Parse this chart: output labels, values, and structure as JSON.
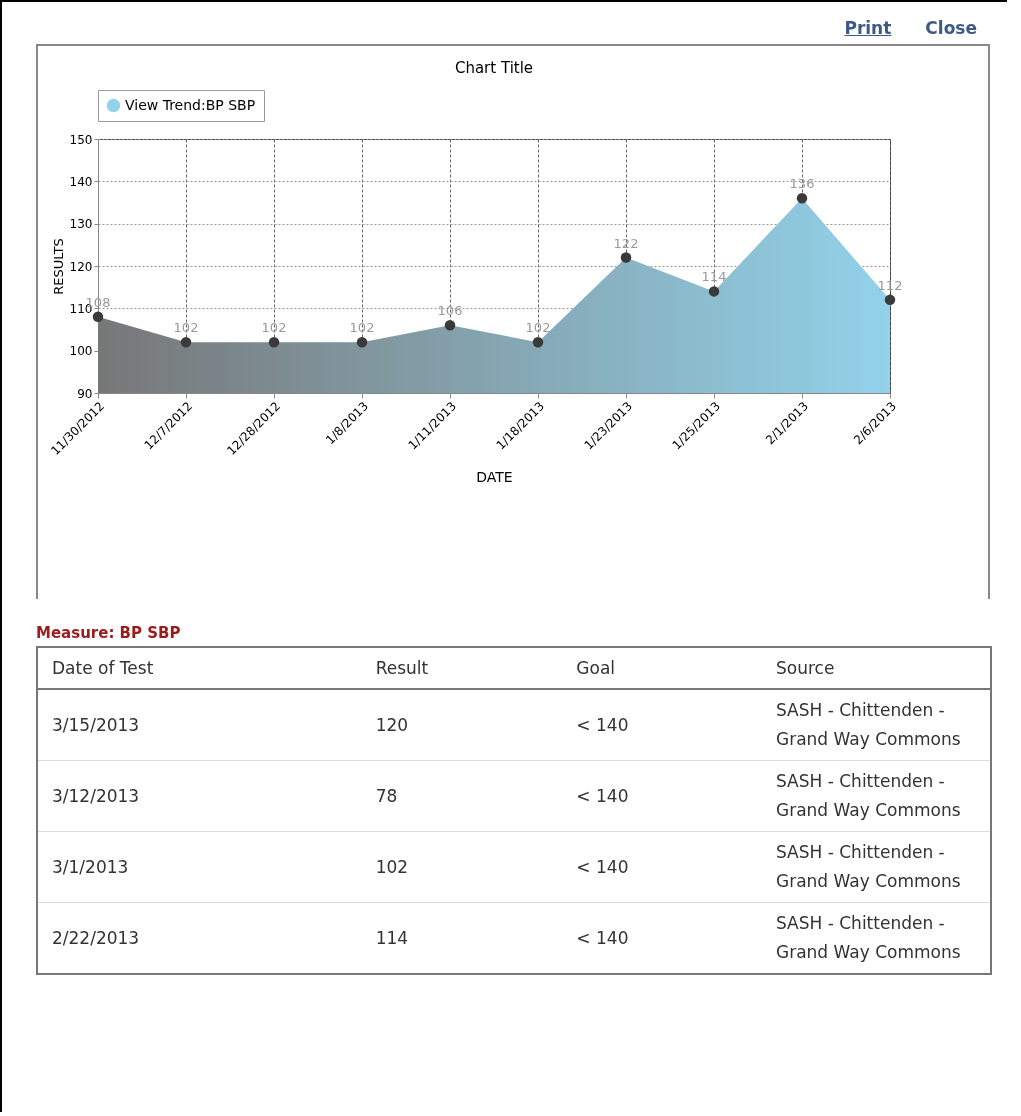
{
  "chart_data": [
    {
      "type": "area",
      "title": "Chart Title",
      "xlabel": "DATE",
      "ylabel": "RESULTS",
      "categories": [
        "11/30/2012",
        "12/7/2012",
        "12/28/2012",
        "1/8/2013",
        "1/11/2013",
        "1/18/2013",
        "1/23/2013",
        "1/25/2013",
        "2/1/2013",
        "2/6/2013"
      ],
      "series": [
        {
          "name": "View Trend:BP SBP",
          "color": "#92d2ea",
          "values": [
            108,
            102,
            102,
            102,
            106,
            102,
            122,
            114,
            136,
            112
          ]
        }
      ],
      "ylim": [
        90,
        150
      ],
      "yticks": [
        90,
        100,
        110,
        120,
        130,
        140,
        150
      ],
      "grid": true,
      "legend": "top",
      "marker": "circle",
      "data_labels": true,
      "annotations": [
        "Print",
        "Close"
      ]
    },
    {
      "type": "other",
      "title": "Measure: BP SBP",
      "categories": [
        "Date of Test",
        "Result",
        "Goal",
        "Source"
      ],
      "annotations": [
        "3/15/2013",
        "120",
        "< 140",
        "SASH - Chittenden - Grand Way Commons",
        "3/12/2013",
        "78",
        "< 140",
        "SASH - Chittenden - Grand Way Commons",
        "3/1/2013",
        "102",
        "< 140",
        "SASH - Chittenden - Grand Way Commons",
        "2/22/2013",
        "114",
        "< 140",
        "SASH - Chittenden - Grand Way Commons"
      ]
    }
  ]
}
